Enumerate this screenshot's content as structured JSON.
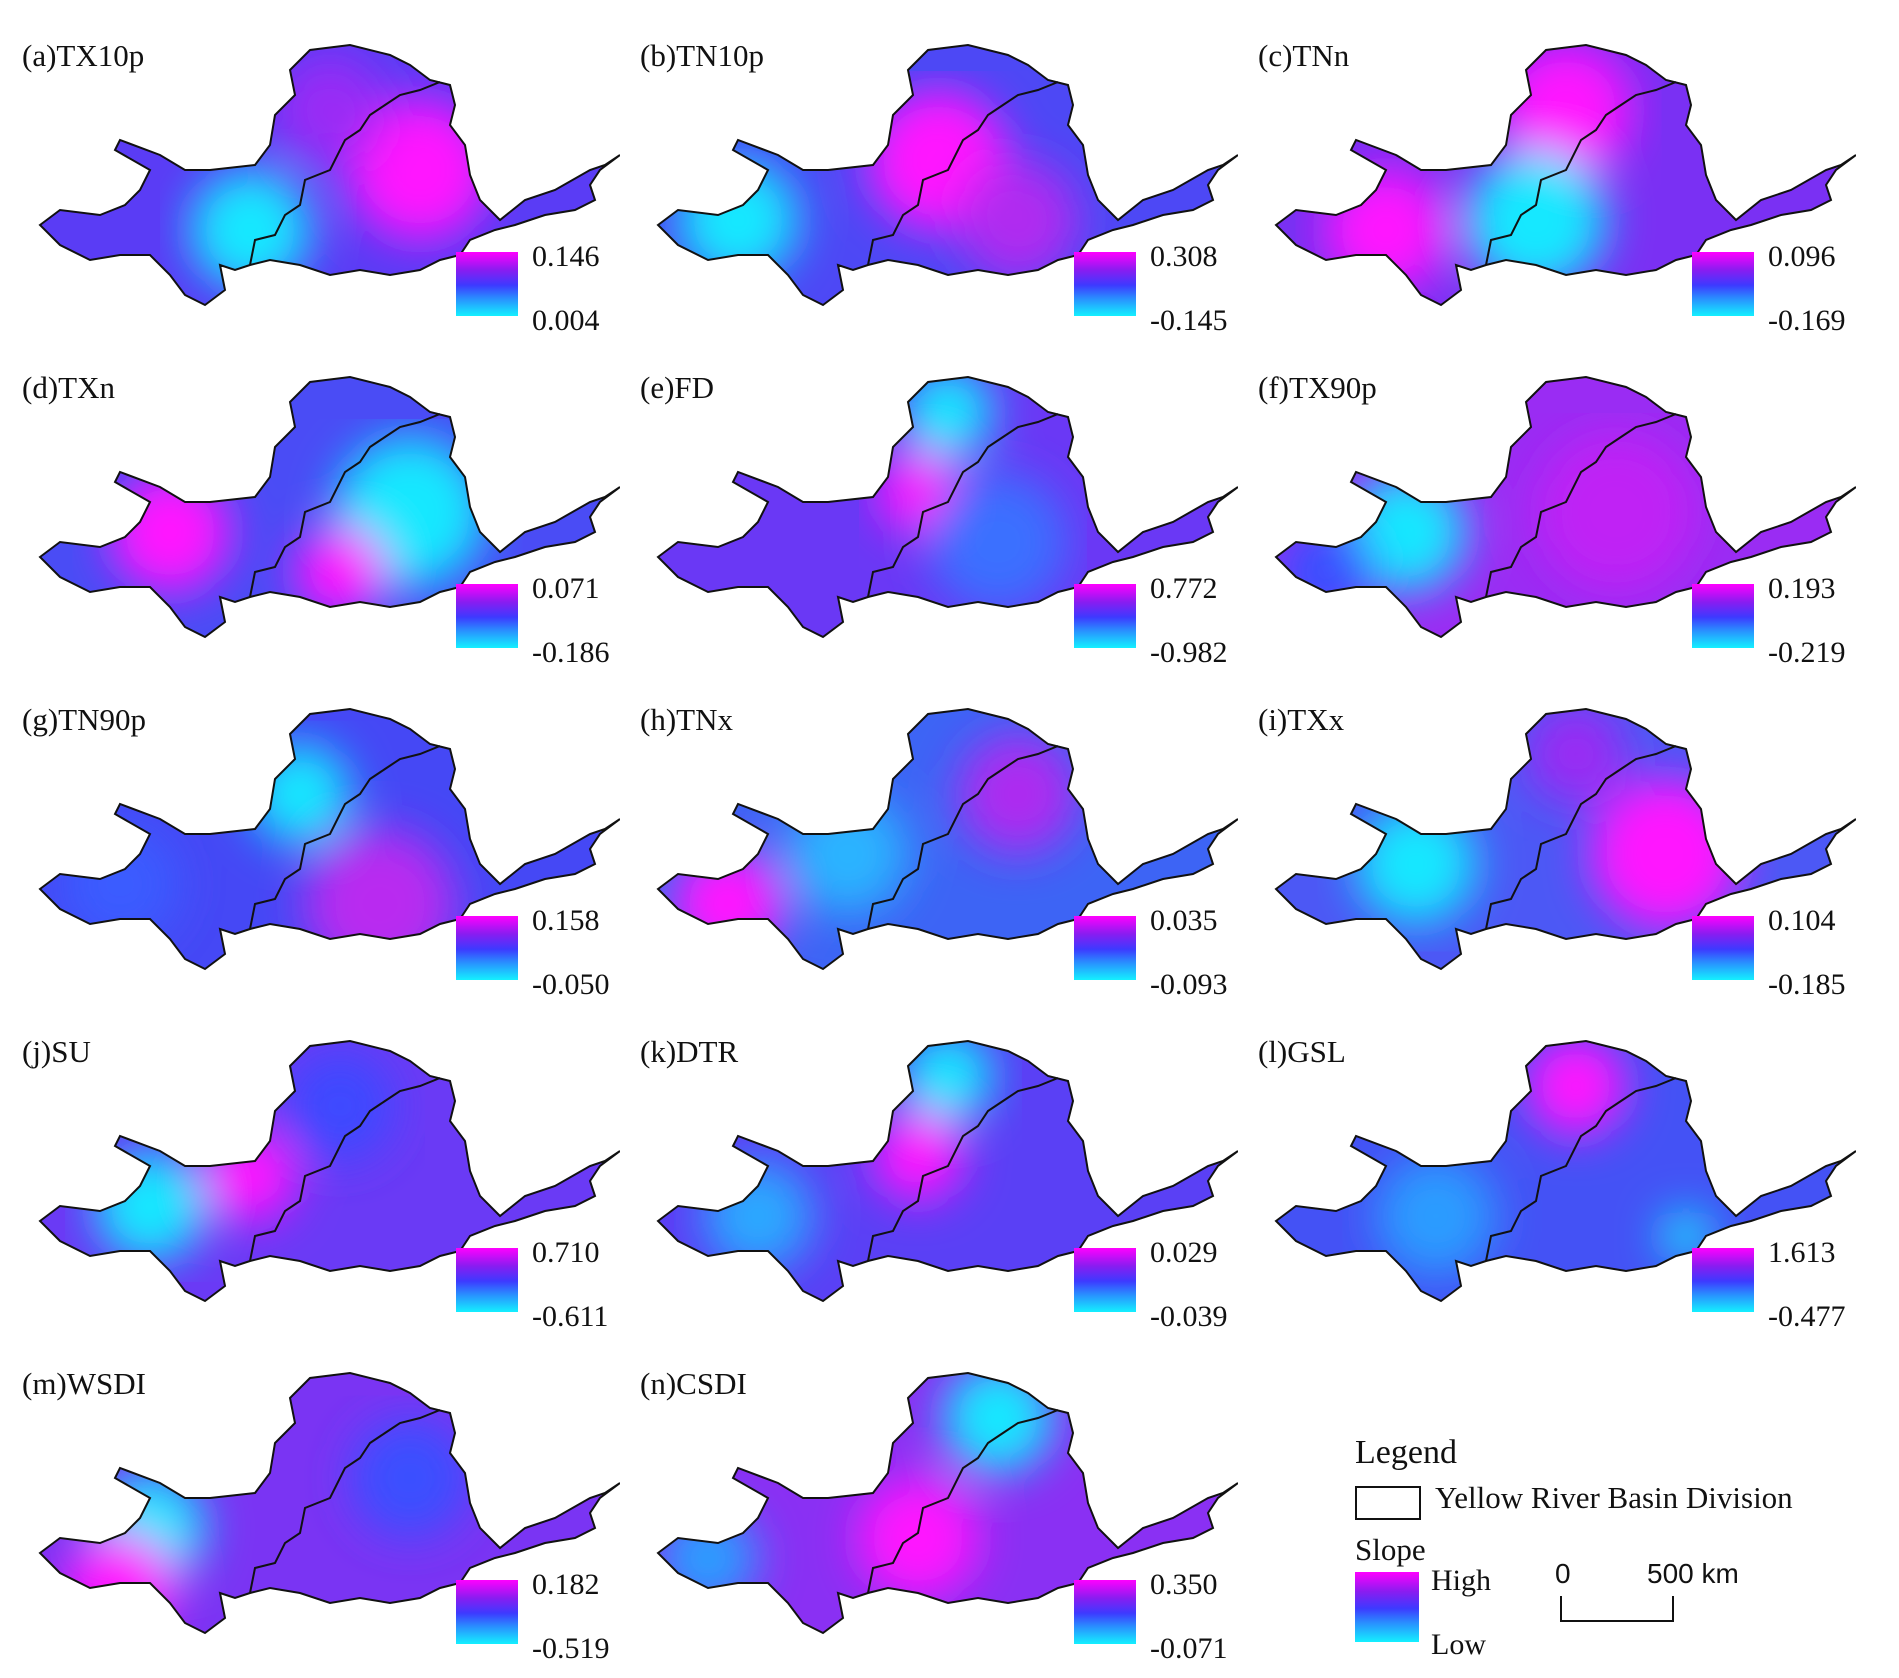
{
  "panels": [
    {
      "label": "(a)TX10p",
      "max": "0.146",
      "min": "0.004",
      "base": "#5a3cf5",
      "blobs": [
        {
          "c": "#ff18ff",
          "x": 420,
          "y": 150,
          "r": 70
        },
        {
          "c": "#14e8ff",
          "x": 250,
          "y": 210,
          "r": 60
        },
        {
          "c": "#9a2cf5",
          "x": 330,
          "y": 90,
          "r": 55
        }
      ]
    },
    {
      "label": "(b)TN10p",
      "max": "0.308",
      "min": "-0.145",
      "base": "#4d48f5",
      "blobs": [
        {
          "c": "#ff18ff",
          "x": 320,
          "y": 140,
          "r": 70
        },
        {
          "c": "#14e8ff",
          "x": 120,
          "y": 200,
          "r": 60
        },
        {
          "c": "#b02cf0",
          "x": 400,
          "y": 200,
          "r": 60
        }
      ]
    },
    {
      "label": "(c)TNn",
      "max": "0.096",
      "min": "-0.169",
      "base": "#7a30f3",
      "blobs": [
        {
          "c": "#ff18ff",
          "x": 330,
          "y": 90,
          "r": 65
        },
        {
          "c": "#14e8ff",
          "x": 300,
          "y": 200,
          "r": 70
        },
        {
          "c": "#ff18ff",
          "x": 150,
          "y": 210,
          "r": 60
        }
      ]
    },
    {
      "label": "(d)TXn",
      "max": "0.071",
      "min": "-0.186",
      "base": "#4a4cf5",
      "blobs": [
        {
          "c": "#14e8ff",
          "x": 410,
          "y": 160,
          "r": 75
        },
        {
          "c": "#ff18ff",
          "x": 170,
          "y": 180,
          "r": 60
        },
        {
          "c": "#ff18ff",
          "x": 340,
          "y": 220,
          "r": 45
        }
      ]
    },
    {
      "label": "(e)FD",
      "max": "0.772",
      "min": "-0.982",
      "base": "#6a38f5",
      "blobs": [
        {
          "c": "#14e8ff",
          "x": 330,
          "y": 60,
          "r": 45
        },
        {
          "c": "#ff18ff",
          "x": 300,
          "y": 140,
          "r": 40
        },
        {
          "c": "#3a70ff",
          "x": 380,
          "y": 190,
          "r": 70
        }
      ]
    },
    {
      "label": "(f)TX90p",
      "max": "0.193",
      "min": "-0.219",
      "base": "#9a2cf3",
      "blobs": [
        {
          "c": "#14e8ff",
          "x": 170,
          "y": 180,
          "r": 60
        },
        {
          "c": "#3a50ff",
          "x": 90,
          "y": 220,
          "r": 50
        },
        {
          "c": "#c020f5",
          "x": 380,
          "y": 160,
          "r": 80
        }
      ]
    },
    {
      "label": "(g)TN90p",
      "max": "0.158",
      "min": "-0.050",
      "base": "#4548f5",
      "blobs": [
        {
          "c": "#14e8ff",
          "x": 300,
          "y": 110,
          "r": 50
        },
        {
          "c": "#b92af0",
          "x": 380,
          "y": 220,
          "r": 75
        },
        {
          "c": "#3a5cff",
          "x": 120,
          "y": 200,
          "r": 60
        }
      ]
    },
    {
      "label": "(h)TNx",
      "max": "0.035",
      "min": "-0.093",
      "base": "#3d64f5",
      "blobs": [
        {
          "c": "#ff18ff",
          "x": 110,
          "y": 220,
          "r": 55
        },
        {
          "c": "#ad2cf0",
          "x": 400,
          "y": 110,
          "r": 60
        },
        {
          "c": "#2ab4ff",
          "x": 230,
          "y": 170,
          "r": 60
        }
      ]
    },
    {
      "label": "(i)TXx",
      "max": "0.104",
      "min": "-0.185",
      "base": "#4c58f5",
      "blobs": [
        {
          "c": "#ff18ff",
          "x": 430,
          "y": 170,
          "r": 75
        },
        {
          "c": "#14e8ff",
          "x": 180,
          "y": 180,
          "r": 60
        },
        {
          "c": "#9a2cf3",
          "x": 340,
          "y": 70,
          "r": 50
        }
      ]
    },
    {
      "label": "(j)SU",
      "max": "0.710",
      "min": "-0.611",
      "base": "#6a3af5",
      "blobs": [
        {
          "c": "#14e8ff",
          "x": 150,
          "y": 190,
          "r": 55
        },
        {
          "c": "#ff18ff",
          "x": 250,
          "y": 160,
          "r": 45
        },
        {
          "c": "#3d48ff",
          "x": 340,
          "y": 90,
          "r": 55
        }
      ]
    },
    {
      "label": "(k)DTR",
      "max": "0.029",
      "min": "-0.039",
      "base": "#5a40f5",
      "blobs": [
        {
          "c": "#14e8ff",
          "x": 330,
          "y": 60,
          "r": 45
        },
        {
          "c": "#ff18ff",
          "x": 300,
          "y": 140,
          "r": 45
        },
        {
          "c": "#2aa8ff",
          "x": 140,
          "y": 200,
          "r": 55
        }
      ]
    },
    {
      "label": "(l)GSL",
      "max": "1.613",
      "min": "-0.477",
      "base": "#4452f5",
      "blobs": [
        {
          "c": "#ff18ff",
          "x": 340,
          "y": 70,
          "r": 50
        },
        {
          "c": "#2a9cff",
          "x": 200,
          "y": 200,
          "r": 60
        },
        {
          "c": "#14e8ff",
          "x": 450,
          "y": 220,
          "r": 25
        }
      ]
    },
    {
      "label": "(m)WSDI",
      "max": "0.182",
      "min": "-0.519",
      "base": "#7a34f3",
      "blobs": [
        {
          "c": "#14e8ff",
          "x": 150,
          "y": 180,
          "r": 55
        },
        {
          "c": "#ff18ff",
          "x": 120,
          "y": 240,
          "r": 55
        },
        {
          "c": "#3a50ff",
          "x": 410,
          "y": 130,
          "r": 60
        }
      ]
    },
    {
      "label": "(n)CSDI",
      "max": "0.350",
      "min": "-0.071",
      "base": "#8a30f3",
      "blobs": [
        {
          "c": "#14e8ff",
          "x": 380,
          "y": 70,
          "r": 55
        },
        {
          "c": "#2a9cff",
          "x": 90,
          "y": 210,
          "r": 50
        },
        {
          "c": "#ff18ff",
          "x": 300,
          "y": 190,
          "r": 60
        }
      ]
    }
  ],
  "legend": {
    "title": "Legend",
    "basin_label": "Yellow River Basin Division",
    "slope_title": "Slope",
    "high": "High",
    "low": "Low",
    "scale_zero": "0",
    "scale_500": "500 km"
  }
}
